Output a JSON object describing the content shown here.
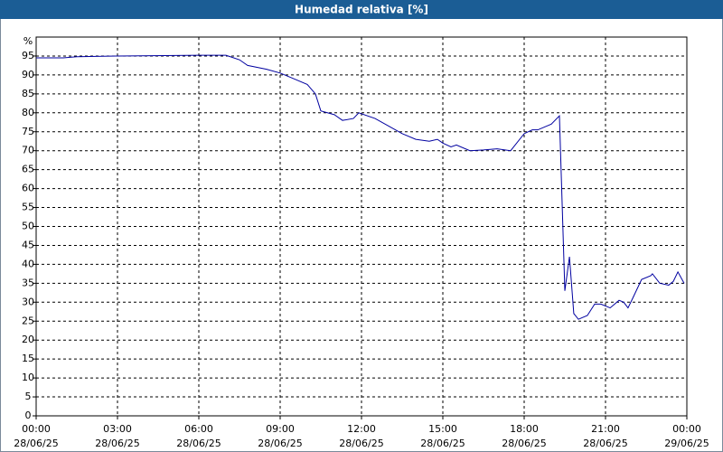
{
  "chart_data": {
    "type": "line",
    "title": "Humedad relativa [%]",
    "y_unit": "%",
    "x": [
      0,
      1,
      1.5,
      3,
      6,
      7,
      7.5,
      7.8,
      8.5,
      9,
      9.5,
      10,
      10.3,
      10.5,
      11,
      11.3,
      11.7,
      11.9,
      12.5,
      13,
      13.5,
      14,
      14.5,
      14.8,
      15,
      15.3,
      15.5,
      16,
      16.5,
      17,
      17.5,
      18,
      18.3,
      18.5,
      19,
      19.3,
      19.5,
      19.67,
      19.83,
      20,
      20.33,
      20.6,
      20.83,
      21.17,
      21.5,
      21.67,
      21.83,
      22,
      22.33,
      22.67,
      22.73,
      23,
      23.33,
      23.5,
      23.67,
      23.9
    ],
    "series": [
      {
        "name": "Humedad relativa",
        "color": "#0000a0",
        "values": [
          94.5,
          94.5,
          94.8,
          95,
          95.2,
          95.2,
          94,
          92.5,
          91.5,
          90.5,
          89,
          87.5,
          85,
          80.5,
          79.5,
          78,
          78.5,
          80,
          78.5,
          76.5,
          74.5,
          73,
          72.5,
          73,
          72,
          71,
          71.5,
          70,
          70.2,
          70.5,
          70,
          74.5,
          75.5,
          75.5,
          77,
          79.2,
          33,
          42,
          27,
          25.5,
          26.5,
          29.5,
          29.5,
          28.5,
          30.5,
          30,
          28.5,
          31,
          36,
          37,
          37.5,
          35,
          34.5,
          35.5,
          38,
          35
        ]
      }
    ],
    "xlim": [
      0,
      24
    ],
    "xticks": [
      {
        "value": 0,
        "label": "00:00"
      },
      {
        "value": 3,
        "label": "03:00"
      },
      {
        "value": 6,
        "label": "06:00"
      },
      {
        "value": 9,
        "label": "09:00"
      },
      {
        "value": 12,
        "label": "12:00"
      },
      {
        "value": 15,
        "label": "15:00"
      },
      {
        "value": 18,
        "label": "18:00"
      },
      {
        "value": 21,
        "label": "21:00"
      },
      {
        "value": 24,
        "label": "00:00"
      }
    ],
    "x_dates": [
      "28/06/25",
      "28/06/25",
      "28/06/25",
      "28/06/25",
      "28/06/25",
      "28/06/25",
      "28/06/25",
      "28/06/25",
      "29/06/25"
    ],
    "ylim": [
      0,
      100
    ],
    "yticks": [
      0,
      5,
      10,
      15,
      20,
      25,
      30,
      35,
      40,
      45,
      50,
      55,
      60,
      65,
      70,
      75,
      80,
      85,
      90,
      95
    ],
    "grid": true
  }
}
